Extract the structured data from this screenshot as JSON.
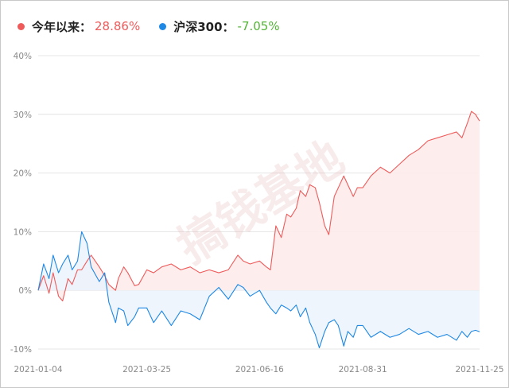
{
  "legend": [
    {
      "name": "今年以来：",
      "value": "28.86%",
      "color": "#ef5a5a",
      "value_color": "#ef5a5a"
    },
    {
      "name": "沪深300：",
      "value": "-7.05%",
      "color": "#1e88e5",
      "value_color": "#52b535"
    }
  ],
  "watermark": "搞钱基地",
  "chart_data": {
    "type": "area",
    "x_ticks": [
      "2021-01-04",
      "2021-03-25",
      "2021-06-16",
      "2021-08-31",
      "2021-11-25"
    ],
    "y_ticks": [
      "40%",
      "30%",
      "20%",
      "10%",
      "0%",
      "-10%"
    ],
    "ylim": [
      -10,
      40
    ],
    "grid": true,
    "legend_position": "top-left",
    "series": [
      {
        "name": "今年以来",
        "color": "#ef5a5a",
        "fill": "#fdeceb",
        "final": 28.86,
        "x": [
          "2021-01-04",
          "2021-01-08",
          "2021-01-12",
          "2021-01-15",
          "2021-01-19",
          "2021-01-22",
          "2021-01-26",
          "2021-01-29",
          "2021-02-02",
          "2021-02-05",
          "2021-02-09",
          "2021-02-12",
          "2021-02-18",
          "2021-02-22",
          "2021-02-25",
          "2021-03-02",
          "2021-03-04",
          "2021-03-08",
          "2021-03-11",
          "2021-03-16",
          "2021-03-19",
          "2021-03-25",
          "2021-03-30",
          "2021-04-05",
          "2021-04-12",
          "2021-04-19",
          "2021-04-26",
          "2021-05-03",
          "2021-05-10",
          "2021-05-17",
          "2021-05-24",
          "2021-05-31",
          "2021-06-04",
          "2021-06-09",
          "2021-06-16",
          "2021-06-21",
          "2021-06-24",
          "2021-06-28",
          "2021-07-02",
          "2021-07-06",
          "2021-07-09",
          "2021-07-13",
          "2021-07-16",
          "2021-07-20",
          "2021-07-23",
          "2021-07-27",
          "2021-07-30",
          "2021-08-03",
          "2021-08-06",
          "2021-08-10",
          "2021-08-13",
          "2021-08-17",
          "2021-08-20",
          "2021-08-24",
          "2021-08-27",
          "2021-08-31",
          "2021-09-06",
          "2021-09-13",
          "2021-09-20",
          "2021-09-27",
          "2021-10-04",
          "2021-10-11",
          "2021-10-18",
          "2021-10-25",
          "2021-11-01",
          "2021-11-08",
          "2021-11-12",
          "2021-11-16",
          "2021-11-19",
          "2021-11-22",
          "2021-11-25"
        ],
        "values": [
          0.0,
          2.5,
          -0.5,
          3.0,
          -1.0,
          -1.8,
          2.0,
          1.0,
          3.5,
          3.5,
          5.0,
          6.0,
          4.0,
          2.5,
          1.0,
          0.0,
          2.0,
          4.0,
          3.0,
          0.8,
          1.0,
          3.5,
          3.0,
          4.0,
          4.5,
          3.5,
          4.0,
          3.0,
          3.5,
          3.0,
          3.5,
          6.0,
          5.0,
          4.5,
          5.0,
          4.0,
          3.5,
          11.0,
          9.0,
          13.0,
          12.5,
          14.0,
          17.0,
          16.0,
          18.0,
          17.5,
          15.0,
          11.0,
          9.5,
          16.0,
          17.5,
          19.5,
          18.0,
          16.0,
          17.5,
          17.5,
          19.5,
          21.0,
          20.0,
          21.5,
          23.0,
          24.0,
          25.5,
          26.0,
          26.5,
          27.0,
          26.0,
          28.5,
          30.5,
          30.0,
          28.86
        ]
      },
      {
        "name": "沪深300",
        "color": "#1e88e5",
        "fill": "#eaf3fd",
        "final": -7.05,
        "x": [
          "2021-01-04",
          "2021-01-08",
          "2021-01-12",
          "2021-01-15",
          "2021-01-19",
          "2021-01-22",
          "2021-01-26",
          "2021-01-29",
          "2021-02-02",
          "2021-02-05",
          "2021-02-09",
          "2021-02-12",
          "2021-02-18",
          "2021-02-22",
          "2021-02-25",
          "2021-03-02",
          "2021-03-04",
          "2021-03-08",
          "2021-03-11",
          "2021-03-16",
          "2021-03-19",
          "2021-03-25",
          "2021-03-30",
          "2021-04-05",
          "2021-04-12",
          "2021-04-19",
          "2021-04-26",
          "2021-05-03",
          "2021-05-10",
          "2021-05-17",
          "2021-05-24",
          "2021-05-31",
          "2021-06-04",
          "2021-06-09",
          "2021-06-16",
          "2021-06-21",
          "2021-06-24",
          "2021-06-28",
          "2021-07-02",
          "2021-07-06",
          "2021-07-09",
          "2021-07-13",
          "2021-07-16",
          "2021-07-20",
          "2021-07-23",
          "2021-07-27",
          "2021-07-30",
          "2021-08-03",
          "2021-08-06",
          "2021-08-10",
          "2021-08-13",
          "2021-08-17",
          "2021-08-20",
          "2021-08-24",
          "2021-08-27",
          "2021-08-31",
          "2021-09-06",
          "2021-09-13",
          "2021-09-20",
          "2021-09-27",
          "2021-10-04",
          "2021-10-11",
          "2021-10-18",
          "2021-10-25",
          "2021-11-01",
          "2021-11-08",
          "2021-11-12",
          "2021-11-16",
          "2021-11-19",
          "2021-11-22",
          "2021-11-25"
        ],
        "values": [
          0.0,
          4.5,
          2.0,
          6.0,
          3.0,
          4.5,
          6.0,
          3.5,
          5.0,
          10.0,
          8.0,
          4.0,
          1.5,
          3.0,
          -2.0,
          -5.5,
          -3.0,
          -3.5,
          -6.0,
          -4.5,
          -3.0,
          -3.0,
          -5.5,
          -3.5,
          -6.0,
          -3.5,
          -4.0,
          -5.0,
          -1.0,
          0.5,
          -1.5,
          1.0,
          0.5,
          -1.0,
          0.0,
          -2.0,
          -3.0,
          -4.0,
          -2.5,
          -3.0,
          -3.5,
          -2.5,
          -4.5,
          -3.0,
          -5.5,
          -7.5,
          -9.8,
          -7.0,
          -5.5,
          -5.0,
          -6.0,
          -9.5,
          -7.0,
          -8.0,
          -6.0,
          -6.0,
          -8.0,
          -7.0,
          -8.0,
          -7.5,
          -6.5,
          -7.5,
          -7.0,
          -8.0,
          -7.5,
          -8.5,
          -7.0,
          -8.0,
          -7.0,
          -6.8,
          -7.05
        ]
      }
    ]
  }
}
